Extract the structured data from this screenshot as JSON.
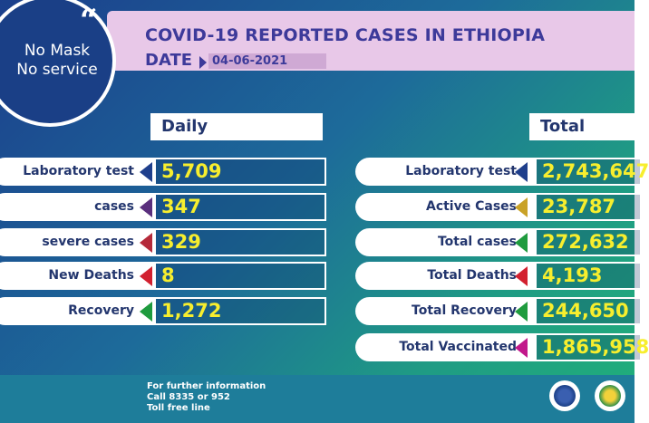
{
  "badge": {
    "line1": "No Mask",
    "line2": "No service"
  },
  "title": "COVID-19 REPORTED CASES IN ETHIOPIA",
  "date_label": "DATE",
  "date_value": "04-06-2021",
  "daily": {
    "header": "Daily",
    "rows": [
      {
        "label": "Laboratory test",
        "value": "5,709",
        "color": "#1f3f8c"
      },
      {
        "label": "cases",
        "value": "347",
        "color": "#5a2f7d"
      },
      {
        "label": "severe cases",
        "value": "329",
        "color": "#b52a3a"
      },
      {
        "label": "New Deaths",
        "value": "8",
        "color": "#d2202f"
      },
      {
        "label": "Recovery",
        "value": "1,272",
        "color": "#1f9b3e"
      }
    ]
  },
  "total": {
    "header": "Total",
    "rows": [
      {
        "label": "Laboratory test",
        "value": "2,743,647",
        "color": "#1f3f8c"
      },
      {
        "label": "Active Cases",
        "value": "23,787",
        "color": "#c9a227"
      },
      {
        "label": "Total cases",
        "value": "272,632",
        "color": "#1f9b3e"
      },
      {
        "label": "Total Deaths",
        "value": "4,193",
        "color": "#d2202f"
      },
      {
        "label": "Total Recovery",
        "value": "244,650",
        "color": "#1f9b3e"
      },
      {
        "label": "Total Vaccinated",
        "value": "1,865,958",
        "color": "#c2188b"
      }
    ]
  },
  "footer": {
    "line1": "For further information",
    "line2": "Call 8335 or 952",
    "line3": "Toll free line"
  }
}
